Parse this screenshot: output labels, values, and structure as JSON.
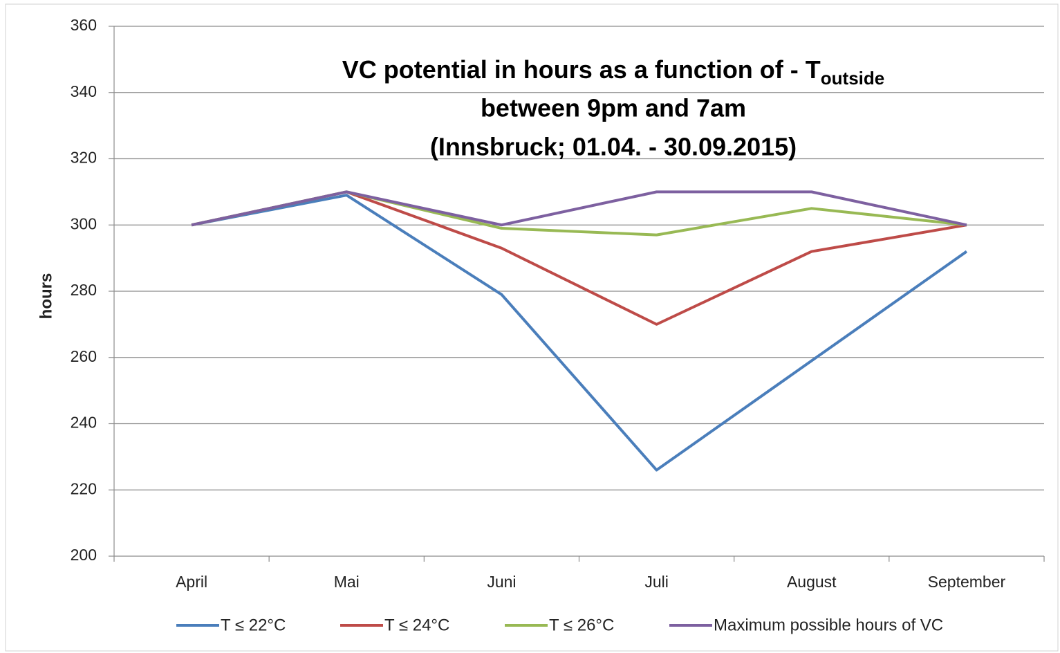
{
  "chart_data": {
    "type": "line",
    "title_lines": [
      "VC potential in hours as a function of - T",
      "between 9pm and 7am",
      "(Innsbruck; 01.04. - 30.09.2015)"
    ],
    "title_subscript": "outside",
    "y_label": "hours",
    "categories": [
      "April",
      "Mai",
      "Juni",
      "Juli",
      "August",
      "September"
    ],
    "series": [
      {
        "name": "T ≤ 22°C",
        "color": "#4a7ebb",
        "values": [
          300,
          309,
          279,
          226,
          259,
          292
        ]
      },
      {
        "name": "T ≤ 24°C",
        "color": "#be4b48",
        "values": [
          300,
          310,
          293,
          270,
          292,
          300
        ]
      },
      {
        "name": "T ≤ 26°C",
        "color": "#98b954",
        "values": [
          300,
          310,
          299,
          297,
          305,
          300
        ]
      },
      {
        "name": "Maximum possible hours of VC",
        "color": "#7d60a0",
        "values": [
          300,
          310,
          300,
          310,
          310,
          300
        ]
      }
    ],
    "ylim": [
      200,
      360
    ],
    "yticks": [
      200,
      220,
      240,
      260,
      280,
      300,
      320,
      340,
      360
    ],
    "grid": true,
    "legend": "bottom"
  }
}
